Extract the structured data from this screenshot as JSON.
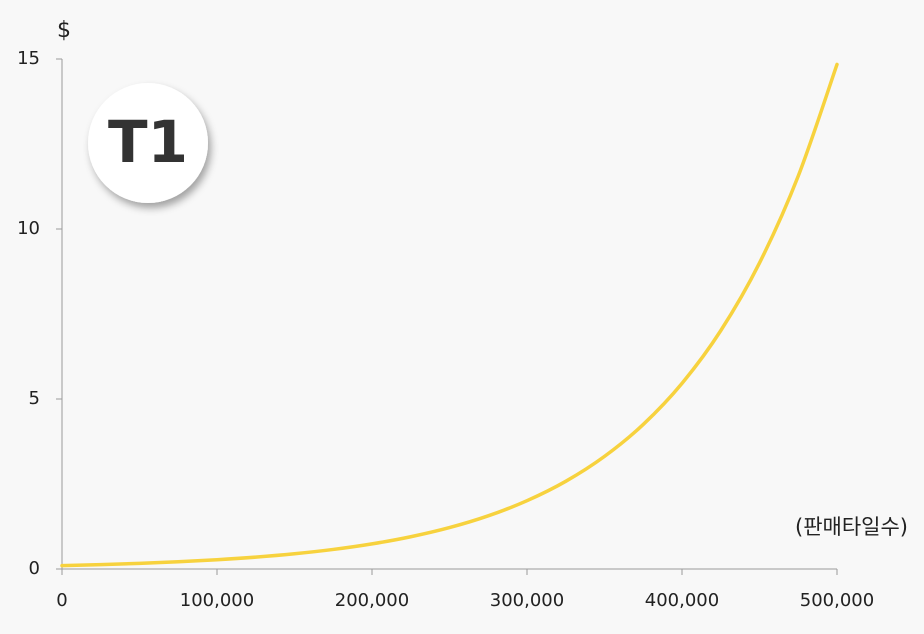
{
  "chart_data": {
    "type": "line",
    "y_label": "$",
    "x_label": "(판매타일수)",
    "annotation": "T1",
    "x": [
      0,
      25000,
      50000,
      75000,
      100000,
      125000,
      150000,
      175000,
      200000,
      225000,
      250000,
      275000,
      300000,
      325000,
      350000,
      375000,
      400000,
      425000,
      450000,
      475000,
      500000
    ],
    "series": [
      {
        "name": "T1",
        "color": "#f7d23e",
        "values": [
          0.1,
          0.128,
          0.165,
          0.212,
          0.272,
          0.349,
          0.448,
          0.575,
          0.739,
          0.949,
          1.218,
          1.564,
          2.009,
          2.579,
          3.312,
          4.252,
          5.46,
          7.011,
          9.002,
          11.558,
          14.841
        ]
      }
    ],
    "xlim": [
      0,
      500000
    ],
    "xticks": [
      0,
      {
        "value": 100000,
        "label": "100,000"
      },
      {
        "value": 200000,
        "label": "200,000"
      },
      {
        "value": 300000,
        "label": "300,000"
      },
      {
        "value": 400000,
        "label": "400,000"
      },
      {
        "value": 500000,
        "label": "500,000"
      }
    ],
    "ylim": [
      0,
      15
    ],
    "yticks": [
      0,
      5,
      10,
      15
    ],
    "grid": false
  }
}
